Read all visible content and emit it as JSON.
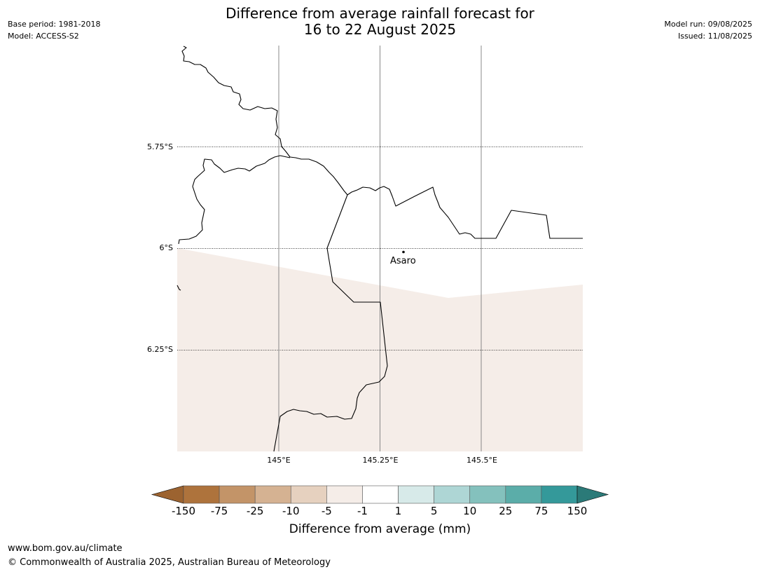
{
  "title": {
    "line1": "Difference from average rainfall forecast for",
    "line2": "16 to 22 August 2025"
  },
  "meta": {
    "base_period": "Base period: 1981-2018",
    "model": "Model: ACCESS-S2",
    "model_run": "Model run: 09/08/2025",
    "issued": "Issued: 11/08/2025"
  },
  "map": {
    "latitude_labels": [
      "5.75°S",
      "6°S",
      "6.25°S"
    ],
    "longitude_labels": [
      "145°E",
      "145.25°E",
      "145.5°E"
    ],
    "place": {
      "name": "Asaro",
      "lon": 145.29,
      "lat": -6.01
    },
    "shaded_category": "-5 to -1",
    "shading_color": "#f5ede8",
    "boundary_color": "#000000",
    "grid_color": "#888888"
  },
  "colorbar": {
    "title": "Difference from average (mm)",
    "ticks": [
      "-150",
      "-75",
      "-25",
      "-10",
      "-5",
      "-1",
      "1",
      "5",
      "10",
      "25",
      "75",
      "150"
    ],
    "under_color": "#9c6330",
    "over_color": "#2b7a78",
    "colors": [
      "#ae733c",
      "#c39468",
      "#d5b292",
      "#e6d1bf",
      "#f5ede8",
      "#ffffff",
      "#d7eae9",
      "#aed6d5",
      "#84c1bd",
      "#5bada9",
      "#34999a"
    ]
  },
  "footer": {
    "url": "www.bom.gov.au/climate",
    "copyright": "© Commonwealth of Australia 2025, Australian Bureau of Meteorology"
  }
}
